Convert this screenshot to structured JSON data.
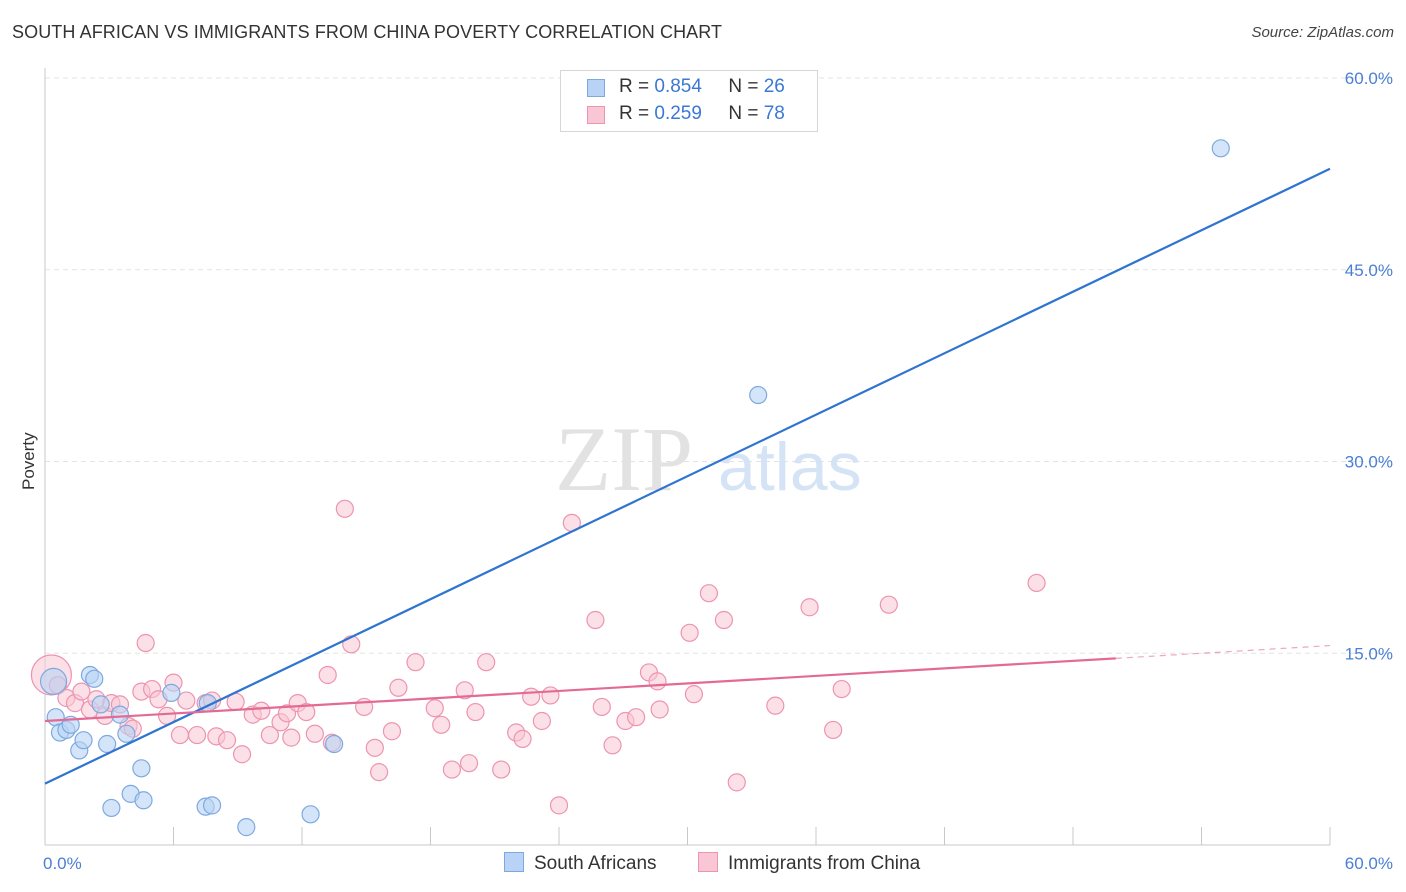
{
  "title": "SOUTH AFRICAN VS IMMIGRANTS FROM CHINA POVERTY CORRELATION CHART",
  "source": "Source: ZipAtlas.com",
  "watermark": {
    "zip": "ZIP",
    "atlas": "atlas"
  },
  "colors": {
    "blue_fill": "#b8d3f5",
    "blue_stroke": "#7ea9e0",
    "blue_line": "#2e74d0",
    "pink_fill": "#f8c6d4",
    "pink_stroke": "#ee94b0",
    "pink_line": "#e46a96",
    "tick_text": "#4a7fd4",
    "grid": "#e3e3e3"
  },
  "legend": [
    {
      "r_label": "R =",
      "r_value": "0.854",
      "n_label": "N =",
      "n_value": "26"
    },
    {
      "r_label": "R =",
      "r_value": "0.259",
      "n_label": "N =",
      "n_value": "78"
    }
  ],
  "bottom_legend": [
    "South Africans",
    "Immigrants from China"
  ],
  "chart_data": {
    "type": "scatter",
    "title": "SOUTH AFRICAN VS IMMIGRANTS FROM CHINA POVERTY CORRELATION CHART",
    "xlabel": "",
    "ylabel": "Poverty",
    "xlim": [
      0,
      60
    ],
    "ylim": [
      0,
      60
    ],
    "x_tick_labels": [
      "0.0%",
      "60.0%"
    ],
    "y_ticks": [
      15,
      30,
      45,
      60
    ],
    "y_tick_labels": [
      "15.0%",
      "30.0%",
      "45.0%",
      "60.0%"
    ],
    "grid": true,
    "legend_position": "top-center",
    "series": [
      {
        "name": "South Africans",
        "r": 0.854,
        "n": 26,
        "trend": {
          "x": [
            0,
            60
          ],
          "y": [
            4.8,
            52.9
          ],
          "dashed_from": null
        },
        "points": [
          [
            0.4,
            12.8
          ],
          [
            0.5,
            10.0
          ],
          [
            0.7,
            8.8
          ],
          [
            1.0,
            9.0
          ],
          [
            1.2,
            9.4
          ],
          [
            1.6,
            7.4
          ],
          [
            1.8,
            8.2
          ],
          [
            2.1,
            13.3
          ],
          [
            2.3,
            13.0
          ],
          [
            2.6,
            11.0
          ],
          [
            3.1,
            2.9
          ],
          [
            2.9,
            7.9
          ],
          [
            3.5,
            10.2
          ],
          [
            3.8,
            8.7
          ],
          [
            4.0,
            4.0
          ],
          [
            4.5,
            6.0
          ],
          [
            4.6,
            3.5
          ],
          [
            5.9,
            11.9
          ],
          [
            7.5,
            3.0
          ],
          [
            7.8,
            3.1
          ],
          [
            7.6,
            11.1
          ],
          [
            9.4,
            1.4
          ],
          [
            12.4,
            2.4
          ],
          [
            13.5,
            7.9
          ],
          [
            33.3,
            35.2
          ],
          [
            54.9,
            54.5
          ]
        ]
      },
      {
        "name": "Immigrants from China",
        "r": 0.259,
        "n": 78,
        "trend": {
          "x": [
            0,
            50
          ],
          "y": [
            9.7,
            14.6
          ],
          "dashed_from": 50,
          "dashed_to": 60,
          "dashed_end_y": 15.6
        },
        "points": [
          [
            0.3,
            13.3
          ],
          [
            0.6,
            12.5
          ],
          [
            1.0,
            11.5
          ],
          [
            1.4,
            11.1
          ],
          [
            1.7,
            12.0
          ],
          [
            2.1,
            10.6
          ],
          [
            2.4,
            11.4
          ],
          [
            2.8,
            10.1
          ],
          [
            3.1,
            11.1
          ],
          [
            3.5,
            11.0
          ],
          [
            3.9,
            9.3
          ],
          [
            4.1,
            9.1
          ],
          [
            4.5,
            12.0
          ],
          [
            4.7,
            15.8
          ],
          [
            5.0,
            12.2
          ],
          [
            5.3,
            11.4
          ],
          [
            5.7,
            10.1
          ],
          [
            6.0,
            12.7
          ],
          [
            6.3,
            8.6
          ],
          [
            6.6,
            11.3
          ],
          [
            7.1,
            8.6
          ],
          [
            7.5,
            11.1
          ],
          [
            7.8,
            11.3
          ],
          [
            8.0,
            8.5
          ],
          [
            8.5,
            8.2
          ],
          [
            8.9,
            11.2
          ],
          [
            9.2,
            7.1
          ],
          [
            9.7,
            10.2
          ],
          [
            10.1,
            10.5
          ],
          [
            10.5,
            8.6
          ],
          [
            11.0,
            9.6
          ],
          [
            11.3,
            10.3
          ],
          [
            11.5,
            8.4
          ],
          [
            11.8,
            11.1
          ],
          [
            12.2,
            10.4
          ],
          [
            12.6,
            8.7
          ],
          [
            13.2,
            13.3
          ],
          [
            13.4,
            8.0
          ],
          [
            14.0,
            26.3
          ],
          [
            14.3,
            15.7
          ],
          [
            14.9,
            10.8
          ],
          [
            15.4,
            7.6
          ],
          [
            15.6,
            5.7
          ],
          [
            16.2,
            8.9
          ],
          [
            16.5,
            12.3
          ],
          [
            17.3,
            14.3
          ],
          [
            18.2,
            10.7
          ],
          [
            18.5,
            9.4
          ],
          [
            19.0,
            5.9
          ],
          [
            19.6,
            12.1
          ],
          [
            19.8,
            6.4
          ],
          [
            20.1,
            10.4
          ],
          [
            20.6,
            14.3
          ],
          [
            21.3,
            5.9
          ],
          [
            22.0,
            8.8
          ],
          [
            22.3,
            8.3
          ],
          [
            22.7,
            11.6
          ],
          [
            23.2,
            9.7
          ],
          [
            23.6,
            11.7
          ],
          [
            24.0,
            3.1
          ],
          [
            24.6,
            25.2
          ],
          [
            25.7,
            17.6
          ],
          [
            26.0,
            10.8
          ],
          [
            26.5,
            7.8
          ],
          [
            27.1,
            9.7
          ],
          [
            27.6,
            10.0
          ],
          [
            28.2,
            13.5
          ],
          [
            28.6,
            12.8
          ],
          [
            28.7,
            10.6
          ],
          [
            30.1,
            16.6
          ],
          [
            30.3,
            11.8
          ],
          [
            31.0,
            19.7
          ],
          [
            31.7,
            17.6
          ],
          [
            32.3,
            4.9
          ],
          [
            34.1,
            10.9
          ],
          [
            35.7,
            18.6
          ],
          [
            36.8,
            9.0
          ],
          [
            37.2,
            12.2
          ],
          [
            39.4,
            18.8
          ],
          [
            46.3,
            20.5
          ]
        ]
      }
    ]
  }
}
